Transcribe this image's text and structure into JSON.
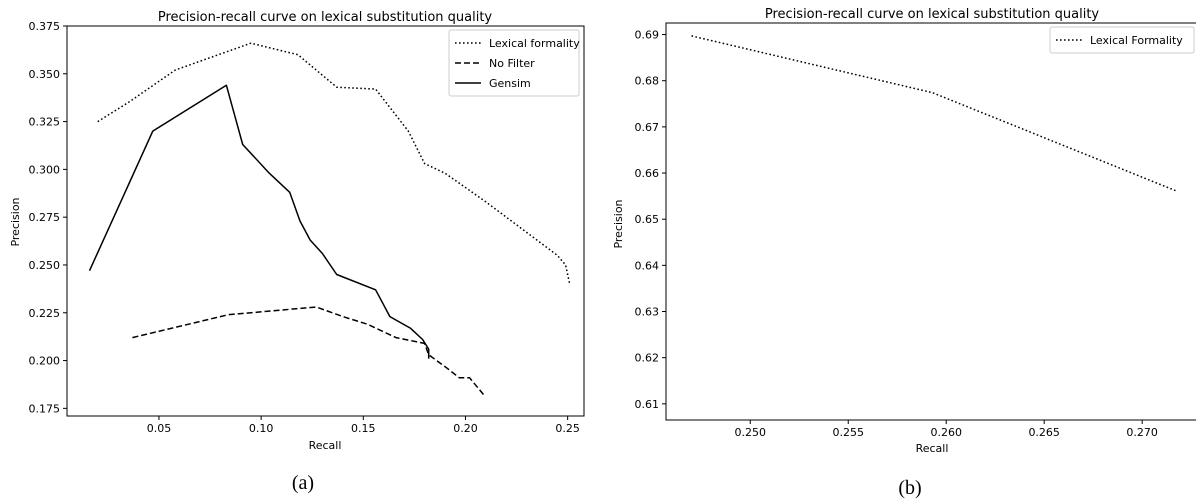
{
  "captions": [
    "(a)",
    "(b)"
  ],
  "chart_data": [
    {
      "type": "line",
      "title": "Precision-recall curve on lexical substitution quality",
      "xlabel": "Recall",
      "ylabel": "Precision",
      "xlim": [
        0.005,
        0.258
      ],
      "ylim": [
        0.171,
        0.375
      ],
      "xticks": [
        0.05,
        0.1,
        0.15,
        0.2,
        0.25
      ],
      "xtick_labels": [
        "0.05",
        "0.10",
        "0.15",
        "0.20",
        "0.25"
      ],
      "yticks": [
        0.175,
        0.2,
        0.225,
        0.25,
        0.275,
        0.3,
        0.325,
        0.35,
        0.375
      ],
      "ytick_labels": [
        "0.175",
        "0.200",
        "0.225",
        "0.250",
        "0.275",
        "0.300",
        "0.325",
        "0.350",
        "0.375"
      ],
      "grid": false,
      "legend_position": "top-right",
      "series": [
        {
          "name": "Lexical formality",
          "style": "dotted",
          "color": "#000000",
          "x": [
            0.02,
            0.035,
            0.058,
            0.095,
            0.118,
            0.137,
            0.156,
            0.172,
            0.18,
            0.19,
            0.21,
            0.23,
            0.245,
            0.249,
            0.251
          ],
          "y": [
            0.325,
            0.335,
            0.352,
            0.366,
            0.36,
            0.343,
            0.342,
            0.32,
            0.303,
            0.298,
            0.283,
            0.267,
            0.255,
            0.25,
            0.24
          ]
        },
        {
          "name": "No Filter",
          "style": "dashed",
          "color": "#000000",
          "x": [
            0.037,
            0.084,
            0.127,
            0.14,
            0.152,
            0.166,
            0.18,
            0.182,
            0.191,
            0.197,
            0.202,
            0.209
          ],
          "y": [
            0.212,
            0.224,
            0.228,
            0.223,
            0.219,
            0.212,
            0.209,
            0.203,
            0.196,
            0.191,
            0.191,
            0.182
          ]
        },
        {
          "name": "Gensim",
          "style": "solid",
          "color": "#000000",
          "x": [
            0.016,
            0.047,
            0.083,
            0.091,
            0.104,
            0.114,
            0.119,
            0.124,
            0.13,
            0.137,
            0.156,
            0.163,
            0.173,
            0.179,
            0.182,
            0.182
          ],
          "y": [
            0.247,
            0.32,
            0.344,
            0.313,
            0.298,
            0.288,
            0.273,
            0.263,
            0.256,
            0.245,
            0.237,
            0.223,
            0.217,
            0.211,
            0.206,
            0.201
          ]
        }
      ]
    },
    {
      "type": "line",
      "title": "Precision-recall curve on lexical substitution quality",
      "xlabel": "Recall",
      "ylabel": "Precision",
      "xlim": [
        0.2457,
        0.2729
      ],
      "ylim": [
        0.6065,
        0.6925
      ],
      "xticks": [
        0.25,
        0.255,
        0.26,
        0.265,
        0.27
      ],
      "xtick_labels": [
        "0.250",
        "0.255",
        "0.260",
        "0.265",
        "0.270"
      ],
      "yticks": [
        0.61,
        0.62,
        0.63,
        0.64,
        0.65,
        0.66,
        0.67,
        0.68,
        0.69
      ],
      "ytick_labels": [
        "0.61",
        "0.62",
        "0.63",
        "0.64",
        "0.65",
        "0.66",
        "0.67",
        "0.68",
        "0.69"
      ],
      "grid": false,
      "legend_position": "top-right",
      "series": [
        {
          "name": "Lexical Formality",
          "style": "dotted",
          "color": "#000000",
          "x": [
            0.247,
            0.2593,
            0.2717
          ],
          "y": [
            0.6897,
            0.6774,
            0.6562
          ]
        }
      ]
    }
  ]
}
